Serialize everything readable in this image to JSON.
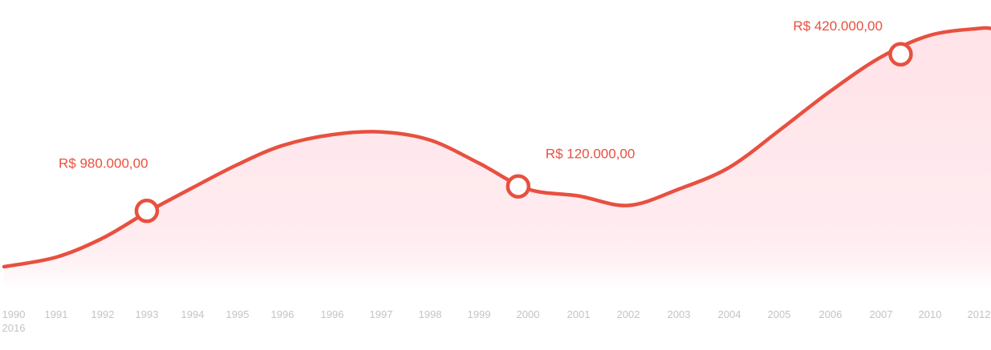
{
  "chart_data": {
    "type": "area",
    "title": "",
    "xlabel": "",
    "ylabel": "",
    "x_ticks": [
      "1990",
      "1991",
      "1992",
      "1993",
      "1994",
      "1995",
      "1996",
      "1996",
      "1997",
      "1998",
      "1999",
      "2000",
      "2001",
      "2002",
      "2003",
      "2004",
      "2005",
      "2006",
      "2007",
      "2010",
      "2012"
    ],
    "x_ticks_second_row": [
      "2016"
    ],
    "series": [
      {
        "values": [
          0.0,
          0.07,
          0.21,
          0.4,
          0.58,
          0.75,
          0.89,
          0.97,
          0.99,
          0.93,
          0.76,
          0.57,
          0.52,
          0.45,
          0.57,
          0.73,
          1.0,
          1.29,
          1.54,
          1.7,
          1.75
        ]
      }
    ],
    "highlighted_points": [
      {
        "x_index": 3.0,
        "value": 0.41,
        "label": "R$ 980.000,00"
      },
      {
        "x_index": 10.8,
        "value": 0.59,
        "label": "R$ 120.000,00"
      },
      {
        "x_index": 18.4,
        "value": 1.56,
        "label": "R$ 420.000,00"
      }
    ],
    "colors": {
      "line": "#e8503f",
      "fill_top": "#ffd3dc",
      "fill_bottom": "#ffffff",
      "marker_fill": "#ffffff",
      "tick": "#c4c4c4",
      "value_label": "#e8503f"
    },
    "grid": false,
    "legend": "none"
  }
}
